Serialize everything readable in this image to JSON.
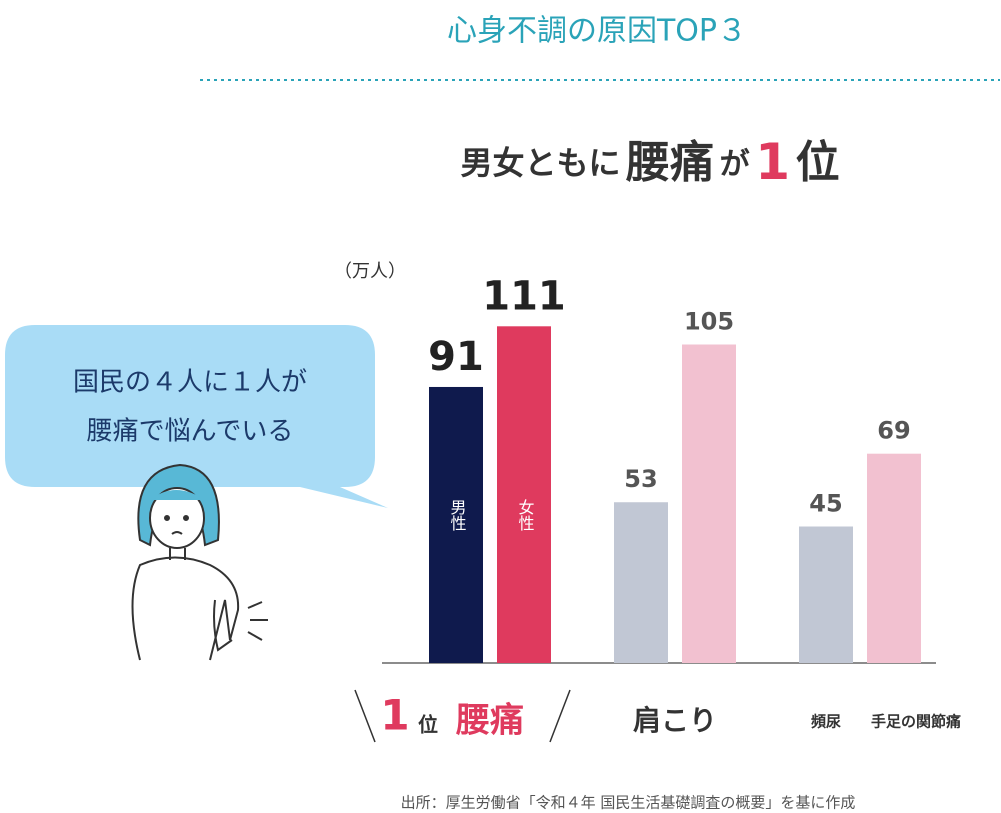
{
  "header": {
    "title": "心身不調の原因TOP３"
  },
  "chart_data": {
    "type": "bar",
    "title": {
      "prefix": "男女ともに",
      "emphasis": "腰痛",
      "particle": "が",
      "rank": "1",
      "suffix": "位"
    },
    "unit_label": "（万人）",
    "categories": [
      "腰痛",
      "肩こり",
      null
    ],
    "rank_label": {
      "rank": "1",
      "suffix": "位"
    },
    "split_labels": [
      "頻尿",
      "手足の関節痛"
    ],
    "series": [
      {
        "name": "男性",
        "color": "#0f1a4d",
        "values": [
          91,
          53,
          45
        ]
      },
      {
        "name": "女性",
        "color": "#df3a5e",
        "values": [
          111,
          105,
          69
        ]
      }
    ],
    "muted_colors": [
      "#c1c7d4",
      "#f2c1d0"
    ],
    "ylim": [
      0,
      120
    ]
  },
  "callout": {
    "lines": [
      "国民の４人に１人が",
      "腰痛で悩んでいる"
    ]
  },
  "source": "出所：厚生労働省「令和４年 国民生活基礎調査の概要」を基に作成"
}
